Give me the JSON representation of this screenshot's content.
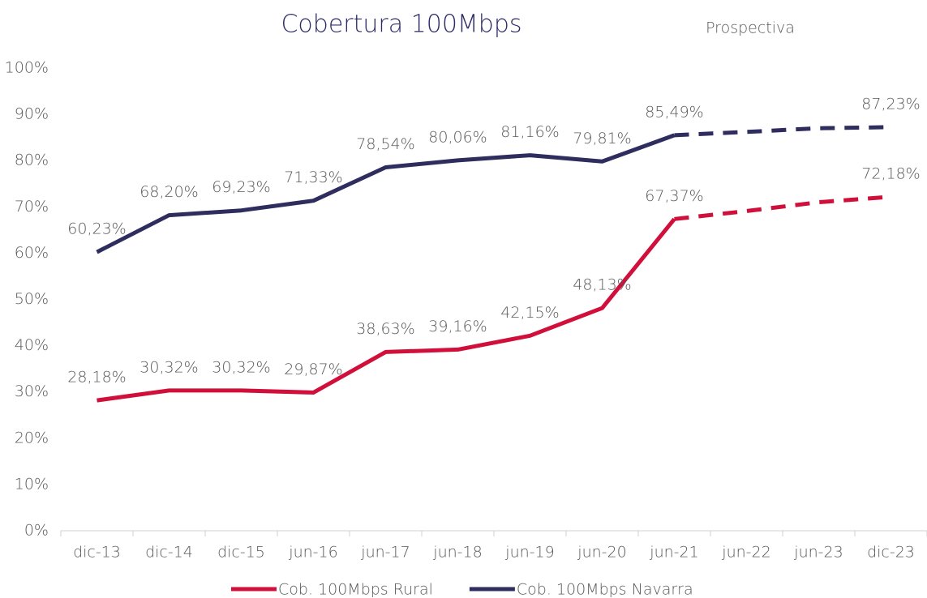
{
  "chart_data": {
    "type": "line",
    "title": "Cobertura 100Mbps",
    "annotation": "Prospectiva",
    "categories": [
      "dic-13",
      "dic-14",
      "dic-15",
      "jun-16",
      "jun-17",
      "jun-18",
      "jun-19",
      "jun-20",
      "jun-21",
      "jun-22",
      "jun-23",
      "dic-23"
    ],
    "dashed_from_index": 8,
    "series": [
      {
        "name": "Cob. 100Mbps Rural",
        "color": "#d0103a",
        "values": [
          28.18,
          30.32,
          30.32,
          29.87,
          38.63,
          39.16,
          42.15,
          48.13,
          67.37,
          69.1,
          71.0,
          72.18
        ],
        "value_labels": [
          "28,18%",
          "30,32%",
          "30,32%",
          "29,87%",
          "38,63%",
          "39,16%",
          "42,15%",
          "48,13%",
          "67,37%",
          null,
          null,
          "72,18%"
        ]
      },
      {
        "name": "Cob. 100Mbps Navarra",
        "color": "#2e2d5e",
        "values": [
          60.23,
          68.2,
          69.23,
          71.33,
          78.54,
          80.06,
          81.16,
          79.81,
          85.49,
          86.2,
          87.0,
          87.23
        ],
        "value_labels": [
          "60,23%",
          "68,20%",
          "69,23%",
          "71,33%",
          "78,54%",
          "80,06%",
          "81,16%",
          "79,81%",
          "85,49%",
          null,
          null,
          "87,23%"
        ]
      }
    ],
    "ylim": [
      0,
      100
    ],
    "yticks": [
      {
        "value": 0,
        "label": "0%"
      },
      {
        "value": 10,
        "label": "10%"
      },
      {
        "value": 20,
        "label": "20%"
      },
      {
        "value": 30,
        "label": "30%"
      },
      {
        "value": 40,
        "label": "40%"
      },
      {
        "value": 50,
        "label": "50%"
      },
      {
        "value": 60,
        "label": "60%"
      },
      {
        "value": 70,
        "label": "70%"
      },
      {
        "value": 80,
        "label": "80%"
      },
      {
        "value": 90,
        "label": "90%"
      },
      {
        "value": 100,
        "label": "100%"
      }
    ],
    "grid": false,
    "legend": "bottom"
  }
}
